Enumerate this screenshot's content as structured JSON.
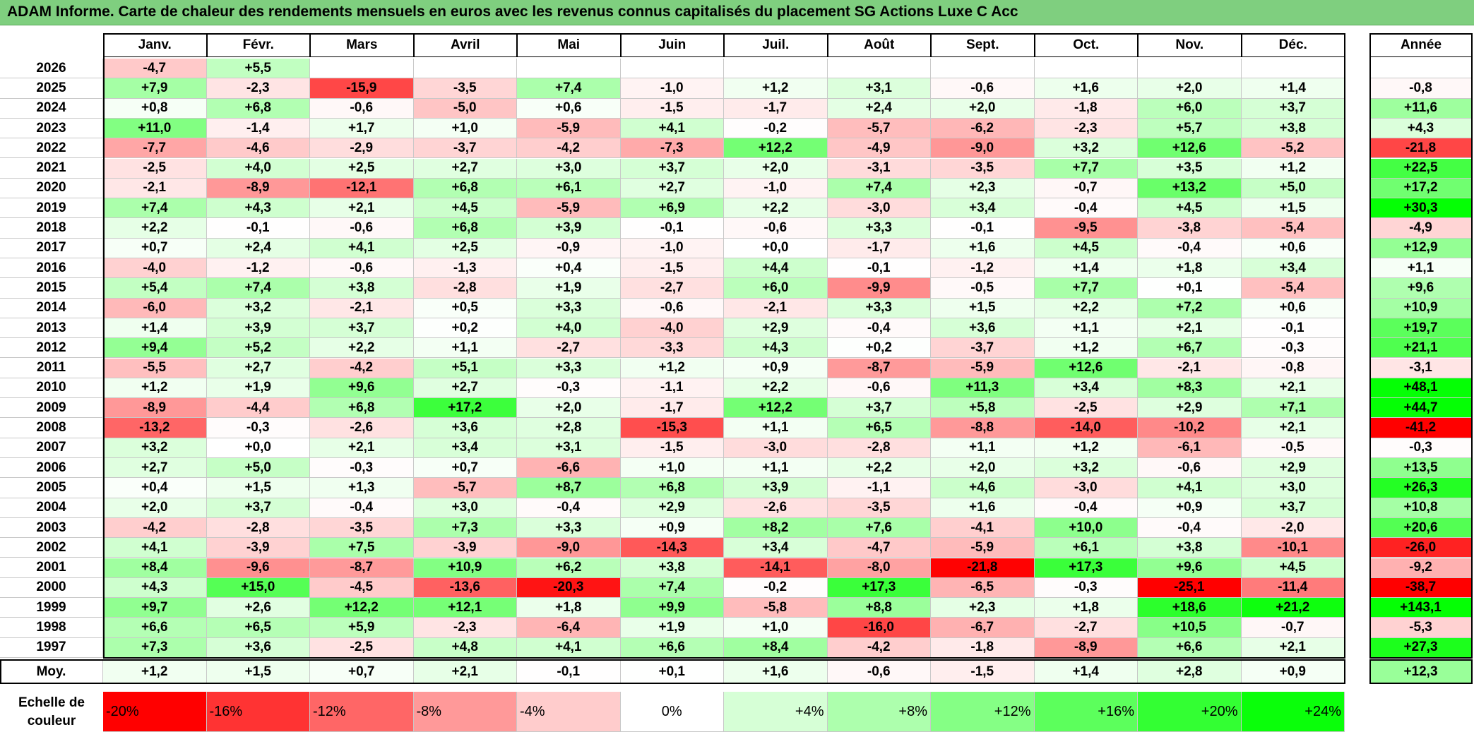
{
  "title": "ADAM Informe. Carte de chaleur des rendements mensuels en euros avec les revenus connus capitalisés du placement SG Actions Luxe C Acc",
  "chart_data": {
    "type": "heatmap",
    "columns": [
      "Janv.",
      "Févr.",
      "Mars",
      "Avril",
      "Mai",
      "Juin",
      "Juil.",
      "Août",
      "Sept.",
      "Oct.",
      "Nov.",
      "Déc."
    ],
    "year_column_label": "Année",
    "rows": [
      {
        "year": "2026",
        "months": [
          "-4,7",
          "+5,5",
          "",
          "",
          "",
          "",
          "",
          "",
          "",
          "",
          "",
          ""
        ],
        "annual": ""
      },
      {
        "year": "2025",
        "months": [
          "+7,9",
          "-2,3",
          "-15,9",
          "-3,5",
          "+7,4",
          "-1,0",
          "+1,2",
          "+3,1",
          "-0,6",
          "+1,6",
          "+2,0",
          "+1,4"
        ],
        "annual": "-0,8"
      },
      {
        "year": "2024",
        "months": [
          "+0,8",
          "+6,8",
          "-0,6",
          "-5,0",
          "+0,6",
          "-1,5",
          "-1,7",
          "+2,4",
          "+2,0",
          "-1,8",
          "+6,0",
          "+3,7"
        ],
        "annual": "+11,6"
      },
      {
        "year": "2023",
        "months": [
          "+11,0",
          "-1,4",
          "+1,7",
          "+1,0",
          "-5,9",
          "+4,1",
          "-0,2",
          "-5,7",
          "-6,2",
          "-2,3",
          "+5,7",
          "+3,8"
        ],
        "annual": "+4,3"
      },
      {
        "year": "2022",
        "months": [
          "-7,7",
          "-4,6",
          "-2,9",
          "-3,7",
          "-4,2",
          "-7,3",
          "+12,2",
          "-4,9",
          "-9,0",
          "+3,2",
          "+12,6",
          "-5,2"
        ],
        "annual": "-21,8"
      },
      {
        "year": "2021",
        "months": [
          "-2,5",
          "+4,0",
          "+2,5",
          "+2,7",
          "+3,0",
          "+3,7",
          "+2,0",
          "-3,1",
          "-3,5",
          "+7,7",
          "+3,5",
          "+1,2"
        ],
        "annual": "+22,5"
      },
      {
        "year": "2020",
        "months": [
          "-2,1",
          "-8,9",
          "-12,1",
          "+6,8",
          "+6,1",
          "+2,7",
          "-1,0",
          "+7,4",
          "+2,3",
          "-0,7",
          "+13,2",
          "+5,0"
        ],
        "annual": "+17,2"
      },
      {
        "year": "2019",
        "months": [
          "+7,4",
          "+4,3",
          "+2,1",
          "+4,5",
          "-5,9",
          "+6,9",
          "+2,2",
          "-3,0",
          "+3,4",
          "-0,4",
          "+4,5",
          "+1,5"
        ],
        "annual": "+30,3"
      },
      {
        "year": "2018",
        "months": [
          "+2,2",
          "-0,1",
          "-0,6",
          "+6,8",
          "+3,9",
          "-0,1",
          "-0,6",
          "+3,3",
          "-0,1",
          "-9,5",
          "-3,8",
          "-5,4"
        ],
        "annual": "-4,9"
      },
      {
        "year": "2017",
        "months": [
          "+0,7",
          "+2,4",
          "+4,1",
          "+2,5",
          "-0,9",
          "-1,0",
          "+0,0",
          "-1,7",
          "+1,6",
          "+4,5",
          "-0,4",
          "+0,6"
        ],
        "annual": "+12,9"
      },
      {
        "year": "2016",
        "months": [
          "-4,0",
          "-1,2",
          "-0,6",
          "-1,3",
          "+0,4",
          "-1,5",
          "+4,4",
          "-0,1",
          "-1,2",
          "+1,4",
          "+1,8",
          "+3,4"
        ],
        "annual": "+1,1"
      },
      {
        "year": "2015",
        "months": [
          "+5,4",
          "+7,4",
          "+3,8",
          "-2,8",
          "+1,9",
          "-2,7",
          "+6,0",
          "-9,9",
          "-0,5",
          "+7,7",
          "+0,1",
          "-5,4"
        ],
        "annual": "+9,6"
      },
      {
        "year": "2014",
        "months": [
          "-6,0",
          "+3,2",
          "-2,1",
          "+0,5",
          "+3,3",
          "-0,6",
          "-2,1",
          "+3,3",
          "+1,5",
          "+2,2",
          "+7,2",
          "+0,6"
        ],
        "annual": "+10,9"
      },
      {
        "year": "2013",
        "months": [
          "+1,4",
          "+3,9",
          "+3,7",
          "+0,2",
          "+4,0",
          "-4,0",
          "+2,9",
          "-0,4",
          "+3,6",
          "+1,1",
          "+2,1",
          "-0,1"
        ],
        "annual": "+19,7"
      },
      {
        "year": "2012",
        "months": [
          "+9,4",
          "+5,2",
          "+2,2",
          "+1,1",
          "-2,7",
          "-3,3",
          "+4,3",
          "+0,2",
          "-3,7",
          "+1,2",
          "+6,7",
          "-0,3"
        ],
        "annual": "+21,1"
      },
      {
        "year": "2011",
        "months": [
          "-5,5",
          "+2,7",
          "-4,2",
          "+5,1",
          "+3,3",
          "+1,2",
          "+0,9",
          "-8,7",
          "-5,9",
          "+12,6",
          "-2,1",
          "-0,8"
        ],
        "annual": "-3,1"
      },
      {
        "year": "2010",
        "months": [
          "+1,2",
          "+1,9",
          "+9,6",
          "+2,7",
          "-0,3",
          "-1,1",
          "+2,2",
          "-0,6",
          "+11,3",
          "+3,4",
          "+8,3",
          "+2,1"
        ],
        "annual": "+48,1"
      },
      {
        "year": "2009",
        "months": [
          "-8,9",
          "-4,4",
          "+6,8",
          "+17,2",
          "+2,0",
          "-1,7",
          "+12,2",
          "+3,7",
          "+5,8",
          "-2,5",
          "+2,9",
          "+7,1"
        ],
        "annual": "+44,7"
      },
      {
        "year": "2008",
        "months": [
          "-13,2",
          "-0,3",
          "-2,6",
          "+3,6",
          "+2,8",
          "-15,3",
          "+1,1",
          "+6,5",
          "-8,8",
          "-14,0",
          "-10,2",
          "+2,1"
        ],
        "annual": "-41,2"
      },
      {
        "year": "2007",
        "months": [
          "+3,2",
          "+0,0",
          "+2,1",
          "+3,4",
          "+3,1",
          "-1,5",
          "-3,0",
          "-2,8",
          "+1,1",
          "+1,2",
          "-6,1",
          "-0,5"
        ],
        "annual": "-0,3"
      },
      {
        "year": "2006",
        "months": [
          "+2,7",
          "+5,0",
          "-0,3",
          "+0,7",
          "-6,6",
          "+1,0",
          "+1,1",
          "+2,2",
          "+2,0",
          "+3,2",
          "-0,6",
          "+2,9"
        ],
        "annual": "+13,5"
      },
      {
        "year": "2005",
        "months": [
          "+0,4",
          "+1,5",
          "+1,3",
          "-5,7",
          "+8,7",
          "+6,8",
          "+3,9",
          "-1,1",
          "+4,6",
          "-3,0",
          "+4,1",
          "+3,0"
        ],
        "annual": "+26,3"
      },
      {
        "year": "2004",
        "months": [
          "+2,0",
          "+3,7",
          "-0,4",
          "+3,0",
          "-0,4",
          "+2,9",
          "-2,6",
          "-3,5",
          "+1,6",
          "-0,4",
          "+0,9",
          "+3,7"
        ],
        "annual": "+10,8"
      },
      {
        "year": "2003",
        "months": [
          "-4,2",
          "-2,8",
          "-3,5",
          "+7,3",
          "+3,3",
          "+0,9",
          "+8,2",
          "+7,6",
          "-4,1",
          "+10,0",
          "-0,4",
          "-2,0"
        ],
        "annual": "+20,6"
      },
      {
        "year": "2002",
        "months": [
          "+4,1",
          "-3,9",
          "+7,5",
          "-3,9",
          "-9,0",
          "-14,3",
          "+3,4",
          "-4,7",
          "-5,9",
          "+6,1",
          "+3,8",
          "-10,1"
        ],
        "annual": "-26,0"
      },
      {
        "year": "2001",
        "months": [
          "+8,4",
          "-9,6",
          "-8,7",
          "+10,9",
          "+6,2",
          "+3,8",
          "-14,1",
          "-8,0",
          "-21,8",
          "+17,3",
          "+9,6",
          "+4,5"
        ],
        "annual": "-9,2"
      },
      {
        "year": "2000",
        "months": [
          "+4,3",
          "+15,0",
          "-4,5",
          "-13,6",
          "-20,3",
          "+7,4",
          "-0,2",
          "+17,3",
          "-6,5",
          "-0,3",
          "-25,1",
          "-11,4"
        ],
        "annual": "-38,7"
      },
      {
        "year": "1999",
        "months": [
          "+9,7",
          "+2,6",
          "+12,2",
          "+12,1",
          "+1,8",
          "+9,9",
          "-5,8",
          "+8,8",
          "+2,3",
          "+1,8",
          "+18,6",
          "+21,2"
        ],
        "annual": "+143,1"
      },
      {
        "year": "1998",
        "months": [
          "+6,6",
          "+6,5",
          "+5,9",
          "-2,3",
          "-6,4",
          "+1,9",
          "+1,0",
          "-16,0",
          "-6,7",
          "-2,7",
          "+10,5",
          "-0,7"
        ],
        "annual": "-5,3"
      },
      {
        "year": "1997",
        "months": [
          "+7,3",
          "+3,6",
          "-2,5",
          "+4,8",
          "+4,1",
          "+6,6",
          "+8,4",
          "-4,2",
          "-1,8",
          "-8,9",
          "+6,6",
          "+2,1"
        ],
        "annual": "+27,3"
      }
    ],
    "average": {
      "label": "Moy.",
      "months": [
        "+1,2",
        "+1,5",
        "+0,7",
        "+2,1",
        "-0,1",
        "+0,1",
        "+1,6",
        "-0,6",
        "-1,5",
        "+1,4",
        "+2,8",
        "+0,9"
      ],
      "annual": "+12,3"
    },
    "color_scale": {
      "label": "Echelle de\ncouleur",
      "steps": [
        {
          "label": "-20%",
          "value": -20,
          "color": "#ff0000"
        },
        {
          "label": "-16%",
          "value": -16,
          "color": "#ff3333"
        },
        {
          "label": "-12%",
          "value": -12,
          "color": "#ff6666"
        },
        {
          "label": "-8%",
          "value": -8,
          "color": "#ff9999"
        },
        {
          "label": "-4%",
          "value": -4,
          "color": "#ffcccc"
        },
        {
          "label": "0%",
          "value": 0,
          "color": "#ffffff"
        },
        {
          "label": "+4%",
          "value": 4,
          "color": "#d6ffd6"
        },
        {
          "label": "+8%",
          "value": 8,
          "color": "#adffad"
        },
        {
          "label": "+12%",
          "value": 12,
          "color": "#85ff85"
        },
        {
          "label": "+16%",
          "value": 16,
          "color": "#5cff5c"
        },
        {
          "label": "+20%",
          "value": 20,
          "color": "#33ff33"
        },
        {
          "label": "+24%",
          "value": 24,
          "color": "#0aff0a"
        }
      ]
    }
  }
}
